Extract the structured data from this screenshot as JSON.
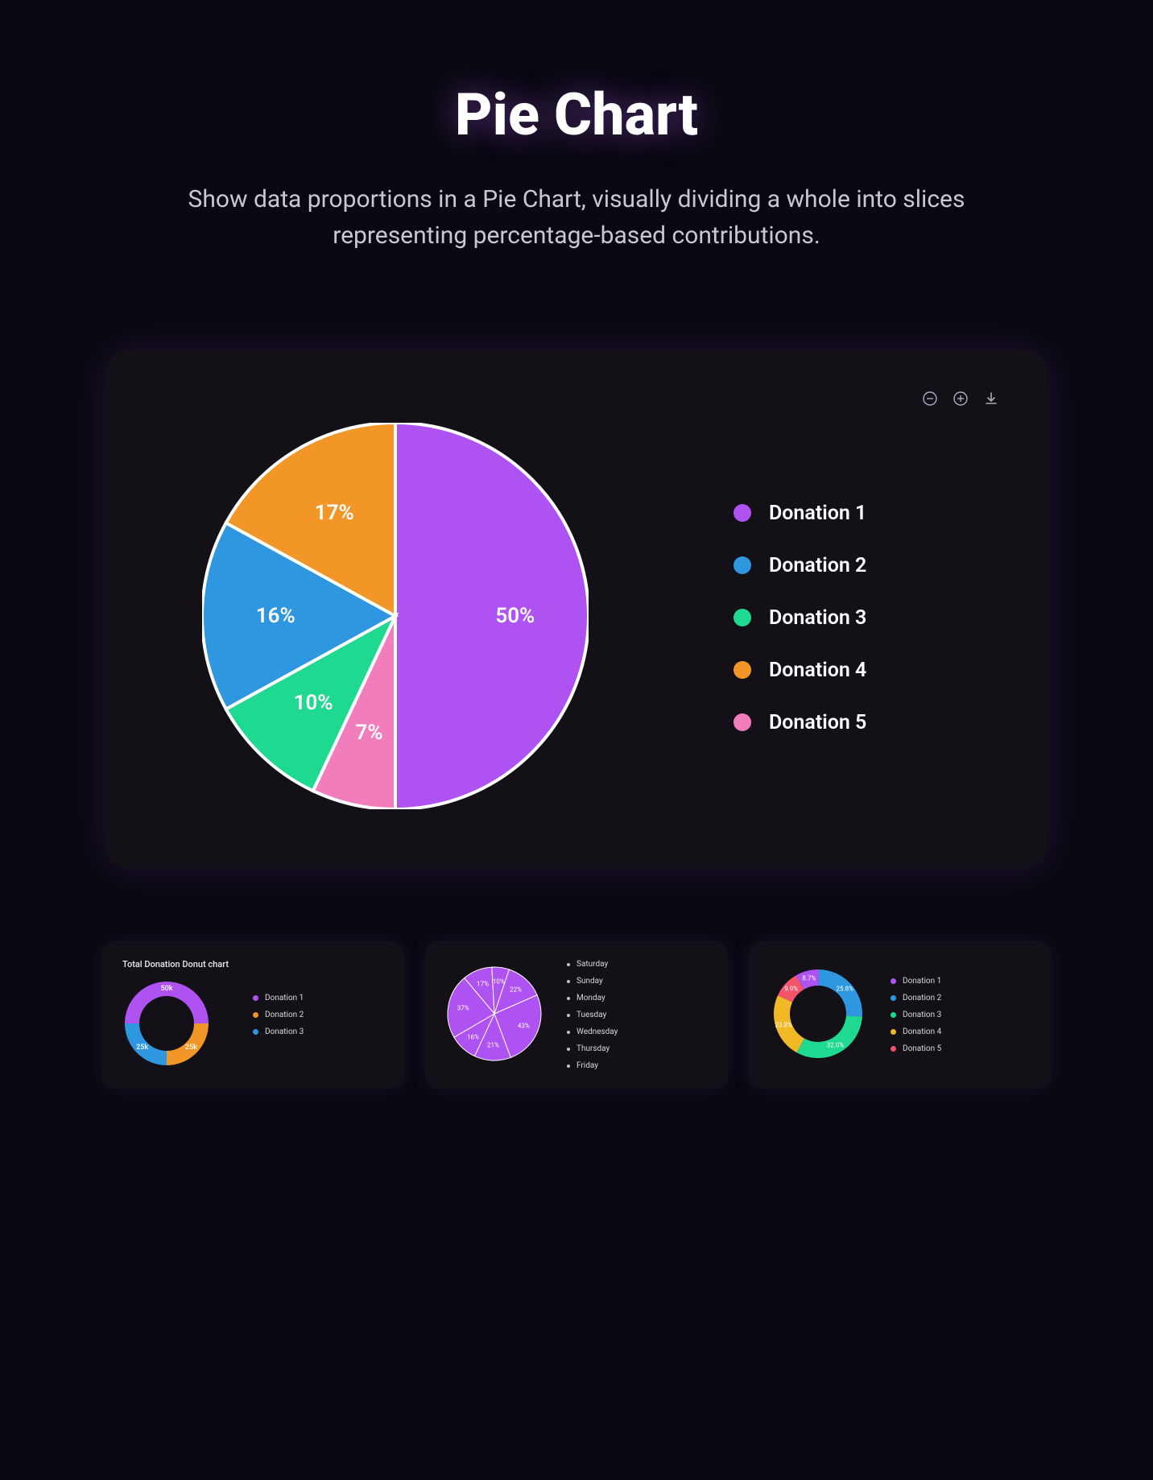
{
  "header": {
    "title": "Pie Chart",
    "subtitle": "Show data proportions in a Pie Chart, visually dividing a whole into slices representing percentage-based contributions."
  },
  "main_chart": {
    "type": "pie",
    "radius": 240,
    "stroke": "#ffffff",
    "stroke_width": 4,
    "background": "#131117",
    "slices": [
      {
        "label": "Donation 1",
        "value": 50,
        "color": "#af52f2",
        "display": "50%"
      },
      {
        "label": "Donation 5",
        "value": 7,
        "color": "#f27dbd",
        "display": "7%"
      },
      {
        "label": "Donation 3",
        "value": 10,
        "color": "#1ed98f",
        "display": "10%"
      },
      {
        "label": "Donation 2",
        "value": 16,
        "color": "#2f97e0",
        "display": "16%"
      },
      {
        "label": "Donation 4",
        "value": 17,
        "color": "#f29727",
        "display": "17%"
      }
    ],
    "legend_order": [
      "Donation 1",
      "Donation 2",
      "Donation 3",
      "Donation 4",
      "Donation 5"
    ],
    "toolbar_icons": [
      "zoom-out",
      "zoom-in",
      "download"
    ]
  },
  "thumb1": {
    "type": "donut",
    "title": "Total Donation Donut chart",
    "radius_outer": 52,
    "radius_inner": 34,
    "slices": [
      {
        "label": "Donation 1",
        "value": 50,
        "color": "#af52f2",
        "display": "50k"
      },
      {
        "label": "Donation 2",
        "value": 25,
        "color": "#f29727",
        "display": "25k"
      },
      {
        "label": "Donation 3",
        "value": 25,
        "color": "#2f97e0",
        "display": "25k"
      }
    ]
  },
  "thumb2": {
    "type": "pie",
    "radius": 58,
    "color": "#af52f2",
    "stroke": "#ffffff",
    "stroke_width": 1,
    "slices": [
      {
        "label": "Saturday",
        "value": 17,
        "display": "17%"
      },
      {
        "label": "Sunday",
        "value": 10,
        "display": "10%"
      },
      {
        "label": "Monday",
        "value": 22,
        "display": "22%"
      },
      {
        "label": "Tuesday",
        "value": 43,
        "display": "43%"
      },
      {
        "label": "Wednesday",
        "value": 21,
        "display": "21%"
      },
      {
        "label": "Thursday",
        "value": 16,
        "display": "16%"
      },
      {
        "label": "Friday",
        "value": 37,
        "display": "37%"
      }
    ],
    "legend": [
      "Saturday",
      "Sunday",
      "Monday",
      "Tuesday",
      "Wednesday",
      "Thursday",
      "Friday"
    ]
  },
  "thumb3": {
    "type": "donut",
    "radius_outer": 55,
    "radius_inner": 35,
    "slices": [
      {
        "label": "Donation 1",
        "value": 8.7,
        "color": "#af52f2",
        "display": "8.7%"
      },
      {
        "label": "Donation 2",
        "value": 25.8,
        "color": "#2f97e0",
        "display": "25.8%"
      },
      {
        "label": "Donation 3",
        "value": 32.0,
        "color": "#1ed98f",
        "display": "32.0%"
      },
      {
        "label": "Donation 4",
        "value": 23.8,
        "color": "#f2b927",
        "display": "23.8%"
      },
      {
        "label": "Donation 5",
        "value": 9.9,
        "color": "#f2546a",
        "display": "9.9%"
      }
    ]
  }
}
